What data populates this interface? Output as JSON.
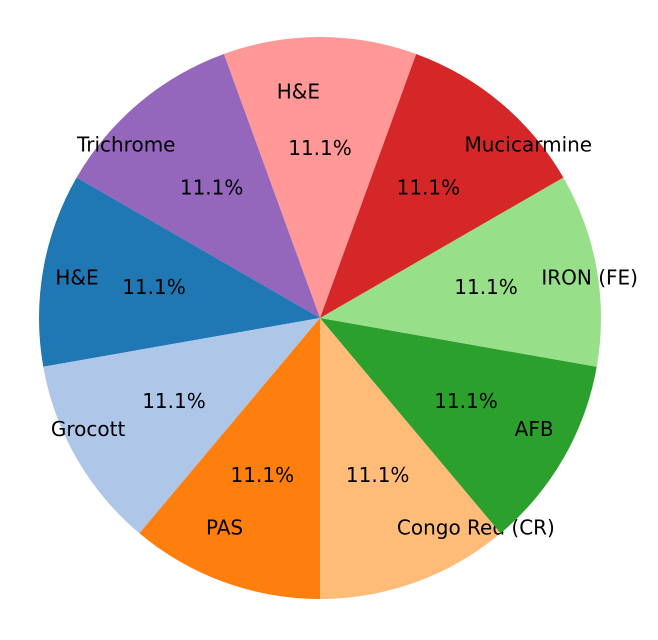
{
  "chart_data": {
    "type": "pie",
    "categories": [
      "Congo Red (CR)",
      "AFB",
      "IRON (FE)",
      "Mucicarmine",
      "H&E",
      "Trichrome",
      "H&E",
      "Grocott",
      "PAS"
    ],
    "values": [
      11.1,
      11.1,
      11.1,
      11.1,
      11.1,
      11.1,
      11.1,
      11.1,
      11.1
    ],
    "value_labels": [
      "11.1%",
      "11.1%",
      "11.1%",
      "11.1%",
      "11.1%",
      "11.1%",
      "11.1%",
      "11.1%",
      "11.1%"
    ],
    "colors": [
      "#ffbb78",
      "#2ca02c",
      "#98df8a",
      "#d62728",
      "#ff9896",
      "#9467bd",
      "#1f77b4",
      "#aec7e8",
      "#ff7f0e"
    ],
    "startangle": 270
  }
}
